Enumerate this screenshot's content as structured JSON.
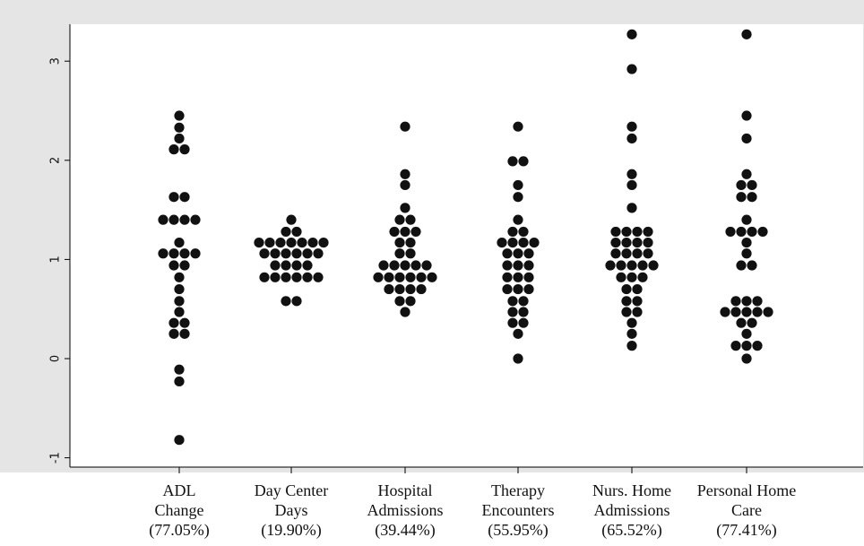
{
  "chart_data": {
    "type": "scatter",
    "title": "",
    "xlabel": "",
    "ylabel": "",
    "ylim": [
      -1.1,
      3.3
    ],
    "yticks": [
      -1,
      0,
      1,
      2,
      3
    ],
    "ytick_labels": [
      "-1",
      "0",
      "1",
      "2",
      "3"
    ],
    "grid": false,
    "legend": "none",
    "point_color": "#111111",
    "background_color": "#e5e5e5",
    "categories": [
      {
        "lines": [
          "ADL",
          "Change",
          "(77.05%)"
        ]
      },
      {
        "lines": [
          "Day Center",
          "Days",
          "(19.90%)"
        ]
      },
      {
        "lines": [
          "Hospital",
          "Admissions",
          "(39.44%)"
        ]
      },
      {
        "lines": [
          "Therapy",
          "Encounters",
          "(55.95%)"
        ]
      },
      {
        "lines": [
          "Nurs. Home",
          "Admissions",
          "(65.52%)"
        ]
      },
      {
        "lines": [
          "Personal Home",
          "Care",
          "(77.41%)"
        ]
      }
    ],
    "series": [
      {
        "points": [
          {
            "y": 2.45,
            "n": 1
          },
          {
            "y": 2.33,
            "n": 1
          },
          {
            "y": 2.22,
            "n": 1
          },
          {
            "y": 2.11,
            "n": 2
          },
          {
            "y": 1.63,
            "n": 2
          },
          {
            "y": 1.4,
            "n": 4
          },
          {
            "y": 1.17,
            "n": 1
          },
          {
            "y": 1.06,
            "n": 4
          },
          {
            "y": 0.94,
            "n": 2
          },
          {
            "y": 0.82,
            "n": 1
          },
          {
            "y": 0.7,
            "n": 1
          },
          {
            "y": 0.58,
            "n": 1
          },
          {
            "y": 0.47,
            "n": 1
          },
          {
            "y": 0.36,
            "n": 2
          },
          {
            "y": 0.25,
            "n": 2
          },
          {
            "y": -0.11,
            "n": 1
          },
          {
            "y": -0.23,
            "n": 1
          },
          {
            "y": -0.82,
            "n": 1
          }
        ]
      },
      {
        "points": [
          {
            "y": 1.4,
            "n": 1
          },
          {
            "y": 1.28,
            "n": 2
          },
          {
            "y": 1.17,
            "n": 7
          },
          {
            "y": 1.06,
            "n": 6
          },
          {
            "y": 0.94,
            "n": 4
          },
          {
            "y": 0.82,
            "n": 6
          },
          {
            "y": 0.58,
            "n": 2
          }
        ]
      },
      {
        "points": [
          {
            "y": 2.34,
            "n": 1
          },
          {
            "y": 1.86,
            "n": 1
          },
          {
            "y": 1.75,
            "n": 1
          },
          {
            "y": 1.52,
            "n": 1
          },
          {
            "y": 1.4,
            "n": 2
          },
          {
            "y": 1.28,
            "n": 3
          },
          {
            "y": 1.17,
            "n": 2
          },
          {
            "y": 1.06,
            "n": 2
          },
          {
            "y": 0.94,
            "n": 5
          },
          {
            "y": 0.82,
            "n": 6
          },
          {
            "y": 0.7,
            "n": 4
          },
          {
            "y": 0.58,
            "n": 2
          },
          {
            "y": 0.47,
            "n": 1
          }
        ]
      },
      {
        "points": [
          {
            "y": 2.34,
            "n": 1
          },
          {
            "y": 1.99,
            "n": 2
          },
          {
            "y": 1.75,
            "n": 1
          },
          {
            "y": 1.63,
            "n": 1
          },
          {
            "y": 1.4,
            "n": 1
          },
          {
            "y": 1.28,
            "n": 2
          },
          {
            "y": 1.17,
            "n": 4
          },
          {
            "y": 1.06,
            "n": 3
          },
          {
            "y": 0.94,
            "n": 3
          },
          {
            "y": 0.82,
            "n": 3
          },
          {
            "y": 0.7,
            "n": 3
          },
          {
            "y": 0.58,
            "n": 2
          },
          {
            "y": 0.47,
            "n": 2
          },
          {
            "y": 0.36,
            "n": 2
          },
          {
            "y": 0.25,
            "n": 1
          },
          {
            "y": 0.0,
            "n": 1
          }
        ]
      },
      {
        "points": [
          {
            "y": 3.27,
            "n": 1
          },
          {
            "y": 2.92,
            "n": 1
          },
          {
            "y": 2.34,
            "n": 1
          },
          {
            "y": 2.22,
            "n": 1
          },
          {
            "y": 1.86,
            "n": 1
          },
          {
            "y": 1.75,
            "n": 1
          },
          {
            "y": 1.52,
            "n": 1
          },
          {
            "y": 1.28,
            "n": 4
          },
          {
            "y": 1.17,
            "n": 4
          },
          {
            "y": 1.06,
            "n": 4
          },
          {
            "y": 0.94,
            "n": 5
          },
          {
            "y": 0.82,
            "n": 3
          },
          {
            "y": 0.7,
            "n": 2
          },
          {
            "y": 0.58,
            "n": 2
          },
          {
            "y": 0.47,
            "n": 2
          },
          {
            "y": 0.36,
            "n": 1
          },
          {
            "y": 0.25,
            "n": 1
          },
          {
            "y": 0.13,
            "n": 1
          }
        ]
      },
      {
        "points": [
          {
            "y": 3.27,
            "n": 1
          },
          {
            "y": 2.45,
            "n": 1
          },
          {
            "y": 2.22,
            "n": 1
          },
          {
            "y": 1.86,
            "n": 1
          },
          {
            "y": 1.75,
            "n": 2
          },
          {
            "y": 1.63,
            "n": 2
          },
          {
            "y": 1.4,
            "n": 1
          },
          {
            "y": 1.28,
            "n": 4
          },
          {
            "y": 1.17,
            "n": 1
          },
          {
            "y": 1.06,
            "n": 1
          },
          {
            "y": 0.94,
            "n": 2
          },
          {
            "y": 0.58,
            "n": 3
          },
          {
            "y": 0.47,
            "n": 5
          },
          {
            "y": 0.36,
            "n": 2
          },
          {
            "y": 0.25,
            "n": 1
          },
          {
            "y": 0.13,
            "n": 3
          },
          {
            "y": 0.0,
            "n": 1
          }
        ]
      }
    ]
  }
}
